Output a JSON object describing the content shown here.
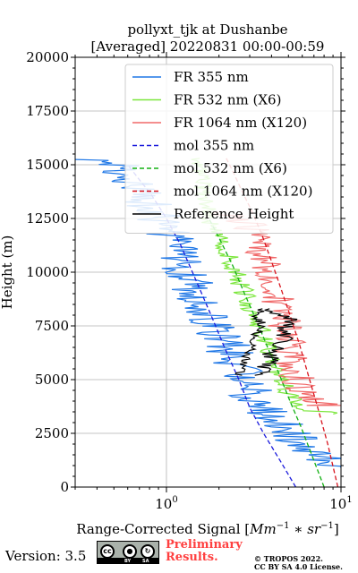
{
  "chart_data": {
    "type": "line",
    "title": "pollyxt_tjk at Dushanbe",
    "subtitle": "[Averaged] 20220831 00:00-00:59",
    "xlabel": "Range-Corrected Signal [Mm^-1 * sr^-1]",
    "ylabel": "Height (m)",
    "xscale": "log",
    "xlim": [
      0.3,
      10
    ],
    "ylim": [
      0,
      20000
    ],
    "xticks": [
      {
        "value": 1,
        "label": "10",
        "exp": "0"
      },
      {
        "value": 10,
        "label": "10",
        "exp": "1"
      }
    ],
    "yticks": [
      0,
      2500,
      5000,
      7500,
      10000,
      12500,
      15000,
      17500,
      20000
    ],
    "ytick_labels": [
      "0",
      "2500",
      "5000",
      "7500",
      "10000",
      "12500",
      "15000",
      "17500",
      "20000"
    ],
    "grid": true,
    "legend_position": "top-right",
    "series": [
      {
        "name": "FR 355 nm",
        "color": "#1f77e6",
        "style": "solid",
        "points": [
          [
            10,
            900
          ],
          [
            9,
            1100
          ],
          [
            7.5,
            1500
          ],
          [
            6,
            2000
          ],
          [
            5,
            2500
          ],
          [
            4.2,
            3100
          ],
          [
            3.5,
            3750
          ],
          [
            3.1,
            4200
          ],
          [
            2.9,
            4800
          ],
          [
            2.6,
            5400
          ],
          [
            2.5,
            5900
          ],
          [
            2.2,
            6600
          ],
          [
            2.0,
            7200
          ],
          [
            1.8,
            7900
          ],
          [
            1.6,
            8700
          ],
          [
            1.4,
            9500
          ],
          [
            1.25,
            10300
          ],
          [
            1.1,
            11200
          ],
          [
            0.95,
            12200
          ],
          [
            0.85,
            12800
          ],
          [
            0.75,
            13500
          ],
          [
            0.65,
            14100
          ],
          [
            0.58,
            14700
          ],
          [
            0.5,
            15200
          ],
          [
            0.3,
            15300
          ]
        ],
        "noise": 0.14
      },
      {
        "name": "FR 532 nm (X6)",
        "color": "#7be63c",
        "style": "solid",
        "points": [
          [
            10,
            3400
          ],
          [
            8,
            3500
          ],
          [
            6,
            3600
          ],
          [
            5,
            4300
          ],
          [
            4.5,
            5000
          ],
          [
            4,
            6000
          ],
          [
            3.6,
            7000
          ],
          [
            3.2,
            8000
          ],
          [
            2.8,
            9000
          ],
          [
            2.5,
            10000
          ],
          [
            2.2,
            11000
          ],
          [
            1.9,
            12000
          ],
          [
            1.7,
            12500
          ],
          [
            1.8,
            13000
          ],
          [
            1.6,
            14000
          ],
          [
            1.55,
            15300
          ]
        ],
        "noise": 0.06
      },
      {
        "name": "FR 1064 nm (X120)",
        "color": "#f06868",
        "style": "solid",
        "points": [
          [
            10,
            3800
          ],
          [
            8,
            3800
          ],
          [
            6.5,
            4100
          ],
          [
            6,
            4600
          ],
          [
            5.5,
            5200
          ],
          [
            5.2,
            6000
          ],
          [
            5.0,
            6800
          ],
          [
            4.8,
            7500
          ],
          [
            4.5,
            8200
          ],
          [
            4.2,
            9000
          ],
          [
            4.0,
            9800
          ],
          [
            3.6,
            10500
          ],
          [
            3.4,
            11200
          ],
          [
            3.2,
            11800
          ],
          [
            3.0,
            12200
          ],
          [
            2.5,
            12500
          ],
          [
            2.0,
            12800
          ]
        ],
        "noise": 0.1
      },
      {
        "name": "mol 355 nm",
        "color": "#1a1adc",
        "style": "dashed",
        "points": [
          [
            5.5,
            0
          ],
          [
            4.5,
            1200
          ],
          [
            3.6,
            2500
          ],
          [
            3.0,
            3700
          ],
          [
            2.6,
            5000
          ],
          [
            2.15,
            6500
          ],
          [
            1.8,
            8000
          ],
          [
            1.48,
            9600
          ],
          [
            1.2,
            11300
          ],
          [
            1.0,
            12500
          ],
          [
            0.82,
            13600
          ],
          [
            0.7,
            14300
          ],
          [
            0.6,
            15000
          ]
        ]
      },
      {
        "name": "mol 532 nm (X6)",
        "color": "#12b012",
        "style": "dashed",
        "points": [
          [
            8.0,
            0
          ],
          [
            6.8,
            1500
          ],
          [
            5.9,
            2800
          ],
          [
            5.1,
            4000
          ],
          [
            4.4,
            5300
          ],
          [
            3.8,
            6500
          ],
          [
            3.3,
            7700
          ],
          [
            2.8,
            9000
          ],
          [
            2.4,
            10300
          ],
          [
            2.0,
            11600
          ],
          [
            1.75,
            12500
          ]
        ]
      },
      {
        "name": "mol 1064 nm (X120)",
        "color": "#d8141e",
        "style": "dashed",
        "points": [
          [
            9.6,
            0
          ],
          [
            8.4,
            2000
          ],
          [
            7.3,
            3800
          ],
          [
            6.5,
            5200
          ],
          [
            5.8,
            6600
          ],
          [
            5.1,
            8000
          ],
          [
            4.5,
            9300
          ],
          [
            4.0,
            10500
          ],
          [
            3.5,
            11800
          ],
          [
            3.1,
            12800
          ],
          [
            2.7,
            13800
          ],
          [
            2.4,
            14700
          ],
          [
            2.2,
            15300
          ]
        ]
      },
      {
        "name": "Reference Height",
        "color": "#000000",
        "style": "solid",
        "segments": [
          {
            "points": [
              [
                2.6,
                5200
              ],
              [
                2.75,
                5600
              ],
              [
                2.85,
                5900
              ],
              [
                3.0,
                6300
              ],
              [
                3.15,
                6700
              ],
              [
                3.3,
                7100
              ],
              [
                3.5,
                7600
              ],
              [
                3.25,
                8000
              ],
              [
                3.55,
                8300
              ]
            ],
            "noise": 0.03
          },
          {
            "points": [
              [
                3.5,
                5200
              ],
              [
                3.7,
                5600
              ],
              [
                3.9,
                6000
              ],
              [
                4.3,
                6500
              ],
              [
                4.9,
                6900
              ],
              [
                4.5,
                7300
              ],
              [
                5.3,
                7700
              ],
              [
                4.2,
                8100
              ],
              [
                3.9,
                8300
              ]
            ],
            "noise": 0.06
          }
        ]
      }
    ]
  },
  "footer": {
    "version": "Version: 3.5",
    "preliminary_line1": "Preliminary",
    "preliminary_line2": "Results.",
    "copyright_line1": "© TROPOS 2022.",
    "copyright_line2": "CC BY SA 4.0 License.",
    "badge": {
      "cc": "cc",
      "by": "BY",
      "sa": "SA"
    }
  }
}
